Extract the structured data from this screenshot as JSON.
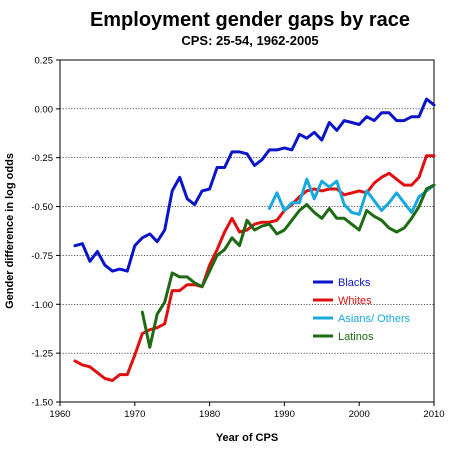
{
  "chart_data": {
    "type": "line",
    "title": "Employment gender gaps by race",
    "subtitle": "CPS: 25-54, 1962-2005",
    "xlabel": "Year of CPS",
    "ylabel": "Gender difference in log odds",
    "xlim": [
      1960,
      2010
    ],
    "ylim": [
      -1.5,
      0.25
    ],
    "xticks": [
      "1960",
      "1970",
      "1980",
      "1990",
      "2000",
      "2010"
    ],
    "yticks": [
      "0.25",
      "0.00",
      "-0.25",
      "-0.50",
      "-0.75",
      "-1.00",
      "-1.25",
      "-1.50"
    ],
    "grid": "horizontal-dotted",
    "legend_position": "lower-right",
    "series": [
      {
        "name": "Blacks",
        "color": "#0a14c8",
        "x": [
          1962,
          1963,
          1964,
          1965,
          1966,
          1967,
          1968,
          1969,
          1970,
          1971,
          1972,
          1973,
          1974,
          1975,
          1976,
          1977,
          1978,
          1979,
          1980,
          1981,
          1982,
          1983,
          1984,
          1985,
          1986,
          1987,
          1988,
          1989,
          1990,
          1991,
          1992,
          1993,
          1994,
          1995,
          1996,
          1997,
          1998,
          1999,
          2000,
          2001,
          2002,
          2003,
          2004,
          2005,
          2006,
          2007,
          2008,
          2009,
          2010
        ],
        "y": [
          -0.7,
          -0.69,
          -0.78,
          -0.73,
          -0.8,
          -0.83,
          -0.82,
          -0.83,
          -0.7,
          -0.66,
          -0.64,
          -0.68,
          -0.62,
          -0.42,
          -0.35,
          -0.46,
          -0.49,
          -0.42,
          -0.41,
          -0.3,
          -0.3,
          -0.22,
          -0.22,
          -0.23,
          -0.29,
          -0.26,
          -0.21,
          -0.21,
          -0.2,
          -0.21,
          -0.13,
          -0.15,
          -0.12,
          -0.16,
          -0.07,
          -0.11,
          -0.06,
          -0.07,
          -0.08,
          -0.04,
          -0.06,
          -0.02,
          -0.02,
          -0.06,
          -0.06,
          -0.04,
          -0.04,
          0.05,
          0.02
        ]
      },
      {
        "name": "Whites",
        "color": "#e01010",
        "x": [
          1962,
          1963,
          1964,
          1965,
          1966,
          1967,
          1968,
          1969,
          1970,
          1971,
          1972,
          1973,
          1974,
          1975,
          1976,
          1977,
          1978,
          1979,
          1980,
          1981,
          1982,
          1983,
          1984,
          1985,
          1986,
          1987,
          1988,
          1989,
          1990,
          1991,
          1992,
          1993,
          1994,
          1995,
          1996,
          1997,
          1998,
          1999,
          2000,
          2001,
          2002,
          2003,
          2004,
          2005,
          2006,
          2007,
          2008,
          2009,
          2010
        ],
        "y": [
          -1.29,
          -1.31,
          -1.32,
          -1.35,
          -1.38,
          -1.39,
          -1.36,
          -1.36,
          -1.26,
          -1.15,
          -1.13,
          -1.12,
          -1.1,
          -0.93,
          -0.93,
          -0.9,
          -0.9,
          -0.91,
          -0.8,
          -0.72,
          -0.63,
          -0.56,
          -0.63,
          -0.62,
          -0.59,
          -0.58,
          -0.58,
          -0.57,
          -0.52,
          -0.49,
          -0.45,
          -0.42,
          -0.41,
          -0.42,
          -0.41,
          -0.41,
          -0.44,
          -0.43,
          -0.42,
          -0.43,
          -0.38,
          -0.35,
          -0.33,
          -0.36,
          -0.39,
          -0.39,
          -0.35,
          -0.24,
          -0.24
        ]
      },
      {
        "name": "Asians/ Others",
        "color": "#18a8e0",
        "x": [
          1988,
          1989,
          1990,
          1991,
          1992,
          1993,
          1994,
          1995,
          1996,
          1997,
          1998,
          1999,
          2000,
          2001,
          2002,
          2003,
          2004,
          2005,
          2006,
          2007,
          2008,
          2009,
          2010
        ],
        "y": [
          -0.51,
          -0.43,
          -0.52,
          -0.48,
          -0.48,
          -0.36,
          -0.46,
          -0.37,
          -0.4,
          -0.37,
          -0.49,
          -0.53,
          -0.54,
          -0.42,
          -0.47,
          -0.52,
          -0.48,
          -0.43,
          -0.48,
          -0.53,
          -0.45,
          -0.42,
          -0.39
        ]
      },
      {
        "name": "Latinos",
        "color": "#1e6a14",
        "x": [
          1971,
          1972,
          1973,
          1974,
          1975,
          1976,
          1977,
          1978,
          1979,
          1980,
          1981,
          1982,
          1983,
          1984,
          1985,
          1986,
          1987,
          1988,
          1989,
          1990,
          1991,
          1992,
          1993,
          1994,
          1995,
          1996,
          1997,
          1998,
          1999,
          2000,
          2001,
          2002,
          2003,
          2004,
          2005,
          2006,
          2007,
          2008,
          2009,
          2010
        ],
        "y": [
          -1.04,
          -1.22,
          -1.05,
          -0.99,
          -0.84,
          -0.86,
          -0.86,
          -0.89,
          -0.91,
          -0.83,
          -0.75,
          -0.72,
          -0.66,
          -0.7,
          -0.57,
          -0.62,
          -0.6,
          -0.59,
          -0.64,
          -0.62,
          -0.57,
          -0.52,
          -0.49,
          -0.53,
          -0.56,
          -0.51,
          -0.56,
          -0.56,
          -0.59,
          -0.62,
          -0.52,
          -0.55,
          -0.57,
          -0.61,
          -0.63,
          -0.61,
          -0.56,
          -0.5,
          -0.41,
          -0.39
        ]
      }
    ]
  }
}
